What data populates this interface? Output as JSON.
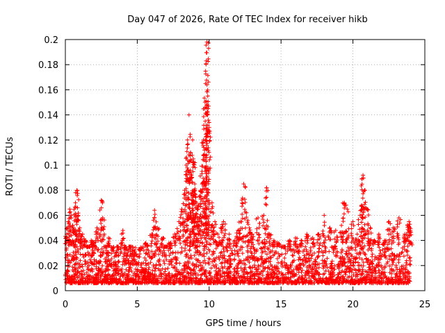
{
  "chart_data": {
    "type": "scatter",
    "title": "Day 047 of 2026, Rate Of TEC Index for receiver hikb",
    "xlabel": "GPS time / hours",
    "ylabel": "ROTI / TECUs",
    "xlim": [
      0,
      25
    ],
    "ylim": [
      0,
      0.2
    ],
    "xticks": [
      "0",
      "5",
      "10",
      "15",
      "20",
      "25"
    ],
    "yticks": [
      "0",
      "0.02",
      "0.04",
      "0.06",
      "0.08",
      "0.1",
      "0.12",
      "0.14",
      "0.16",
      "0.18",
      "0.2"
    ],
    "grid": true,
    "marker": "plus",
    "color": "#ff0000",
    "series": [
      {
        "x": [
          0.1,
          0.2,
          0.3,
          0.4,
          0.5,
          0.6,
          0.7,
          0.8,
          0.9,
          1.0,
          1.2,
          1.4,
          1.6,
          1.8,
          2.0,
          2.2,
          2.5,
          2.6,
          2.8,
          3.0,
          3.3,
          3.6,
          4.0,
          4.2,
          4.5,
          4.8,
          5.2,
          5.6,
          6.0,
          6.2,
          6.4,
          6.8,
          7.0,
          7.3,
          7.6,
          7.9,
          8.1,
          8.3,
          8.4,
          8.5,
          8.6,
          8.7,
          8.8,
          8.85,
          8.9,
          8.95,
          9.0,
          9.1,
          9.2,
          9.3,
          9.4,
          9.5,
          9.6,
          9.7,
          9.75,
          9.8,
          9.85,
          9.9,
          10.0,
          10.2,
          10.4,
          10.6,
          10.8,
          11.0,
          11.4,
          11.8,
          12.0,
          12.2,
          12.4,
          12.6,
          12.8,
          13.0,
          13.4,
          13.8,
          14.0,
          14.2,
          14.5,
          14.8,
          15.2,
          15.6,
          16.0,
          16.4,
          16.8,
          17.2,
          17.6,
          18.0,
          18.4,
          18.8,
          19.2,
          19.4,
          19.6,
          20.0,
          20.3,
          20.5,
          20.6,
          20.7,
          20.8,
          21.0,
          21.2,
          21.5,
          21.8,
          22.2,
          22.5,
          22.8,
          23.2,
          23.6,
          23.8,
          23.9,
          24.0
        ],
        "y": [
          0.045,
          0.055,
          0.065,
          0.06,
          0.052,
          0.048,
          0.07,
          0.08,
          0.06,
          0.05,
          0.045,
          0.04,
          0.035,
          0.04,
          0.038,
          0.05,
          0.072,
          0.058,
          0.035,
          0.042,
          0.032,
          0.035,
          0.048,
          0.03,
          0.035,
          0.028,
          0.032,
          0.038,
          0.045,
          0.064,
          0.05,
          0.042,
          0.035,
          0.038,
          0.045,
          0.055,
          0.065,
          0.08,
          0.1,
          0.12,
          0.14,
          0.11,
          0.09,
          0.12,
          0.105,
          0.08,
          0.085,
          0.07,
          0.065,
          0.075,
          0.08,
          0.095,
          0.12,
          0.145,
          0.165,
          0.183,
          0.198,
          0.155,
          0.13,
          0.07,
          0.055,
          0.045,
          0.05,
          0.055,
          0.045,
          0.04,
          0.048,
          0.055,
          0.085,
          0.062,
          0.05,
          0.045,
          0.058,
          0.06,
          0.082,
          0.045,
          0.04,
          0.038,
          0.035,
          0.04,
          0.042,
          0.04,
          0.045,
          0.042,
          0.045,
          0.06,
          0.05,
          0.048,
          0.052,
          0.07,
          0.065,
          0.055,
          0.045,
          0.06,
          0.068,
          0.092,
          0.08,
          0.065,
          0.05,
          0.04,
          0.045,
          0.04,
          0.055,
          0.05,
          0.058,
          0.045,
          0.052,
          0.055,
          0.048
        ]
      }
    ],
    "baseline_band": {
      "x": [
        0,
        24
      ],
      "y_low": 0.006,
      "y_high": 0.035
    }
  }
}
